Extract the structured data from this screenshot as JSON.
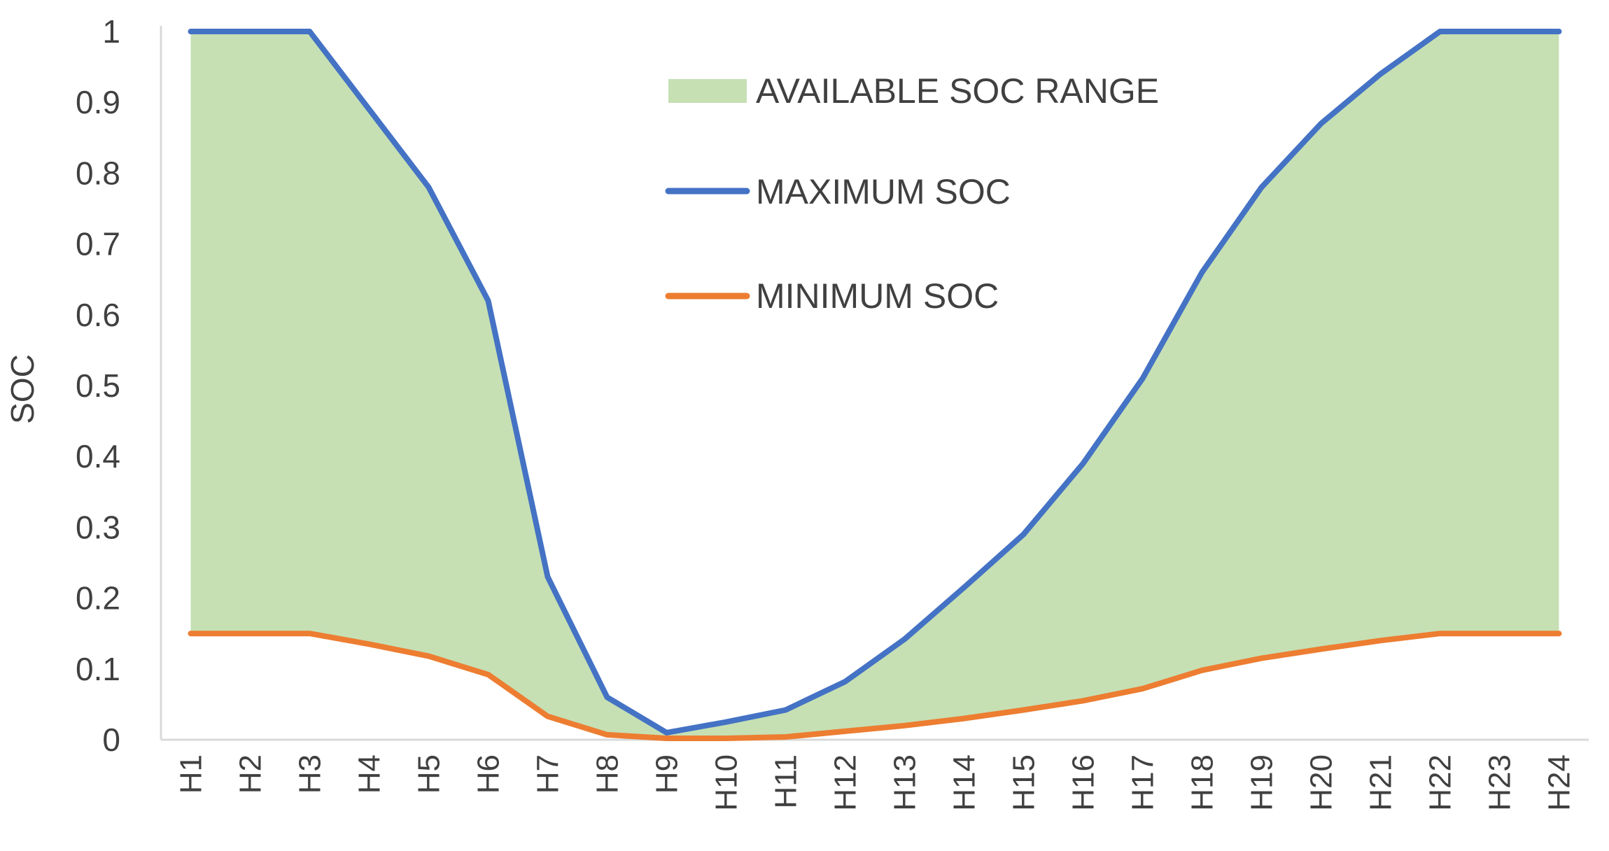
{
  "chart_data": {
    "type": "area",
    "title": "",
    "xlabel": "",
    "ylabel": "SOC",
    "ylim": [
      0,
      1
    ],
    "yticks": [
      "0",
      "0.1",
      "0.2",
      "0.3",
      "0.4",
      "0.5",
      "0.6",
      "0.7",
      "0.8",
      "0.9",
      "1"
    ],
    "categories": [
      "H1",
      "H2",
      "H3",
      "H4",
      "H5",
      "H6",
      "H7",
      "H8",
      "H9",
      "H10",
      "H11",
      "H12",
      "H13",
      "H14",
      "H15",
      "H16",
      "H17",
      "H18",
      "H19",
      "H20",
      "H21",
      "H22",
      "H23",
      "H24"
    ],
    "series": [
      {
        "name": "MAXIMUM SOC",
        "color": "#4472c4",
        "values": [
          1,
          1,
          1,
          0.89,
          0.78,
          0.62,
          0.23,
          0.06,
          0.01,
          0.025,
          0.042,
          0.082,
          0.142,
          0.215,
          0.29,
          0.39,
          0.51,
          0.66,
          0.78,
          0.87,
          0.94,
          1,
          1,
          1
        ]
      },
      {
        "name": "MINIMUM SOC",
        "color": "#ed7d31",
        "values": [
          0.15,
          0.15,
          0.15,
          0.135,
          0.118,
          0.092,
          0.033,
          0.007,
          0.002,
          0.002,
          0.004,
          0.012,
          0.02,
          0.03,
          0.042,
          0.055,
          0.072,
          0.098,
          0.115,
          0.128,
          0.14,
          0.15,
          0.15,
          0.15
        ]
      }
    ],
    "band": {
      "name": "AVAILABLE SOC RANGE",
      "color": "#c6e0b4",
      "between": [
        "MINIMUM SOC",
        "MAXIMUM SOC"
      ]
    },
    "legend": {
      "position": "top-center",
      "entries": [
        "AVAILABLE SOC RANGE",
        "MAXIMUM SOC",
        "MINIMUM SOC"
      ]
    },
    "grid": false,
    "axis_color": "#d9d9d9"
  }
}
